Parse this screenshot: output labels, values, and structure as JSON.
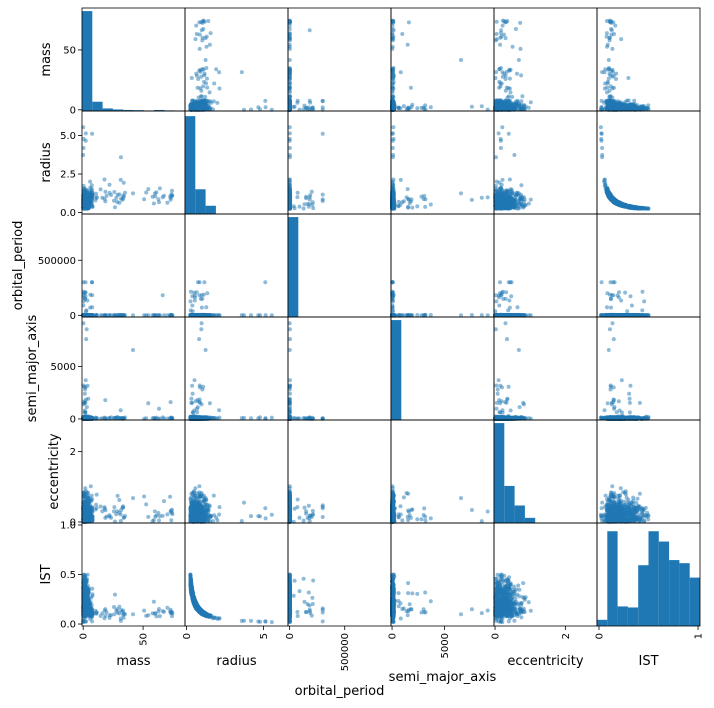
{
  "chart_data": {
    "type": "scatter",
    "variables": [
      "mass",
      "radius",
      "orbital_period",
      "semi_major_axis",
      "eccentricity",
      "IST"
    ],
    "axes": {
      "mass": {
        "range": [
          -1,
          85
        ],
        "ticks": [
          0,
          50
        ],
        "x_ticks": [
          0,
          50
        ],
        "x_tick_labels": [
          "0",
          "50"
        ]
      },
      "radius": {
        "range": [
          -0.1,
          6.6
        ],
        "ticks": [
          0.0,
          2.5,
          5.0
        ],
        "tick_labels": [
          "0.0",
          "2.5",
          "5.0"
        ],
        "x_ticks": [
          0,
          5
        ],
        "x_tick_labels": [
          "0",
          "5"
        ]
      },
      "orbital_period": {
        "range": [
          -15000,
          920000
        ],
        "ticks": [
          0,
          500000
        ],
        "tick_labels": [
          "0",
          "500000"
        ]
      },
      "semi_major_axis": {
        "range": [
          -100,
          9700
        ],
        "ticks": [
          0,
          5000
        ],
        "tick_labels": [
          "0",
          "5000"
        ]
      },
      "eccentricity": {
        "range": [
          -0.03,
          2.9
        ],
        "ticks": [
          0,
          2
        ],
        "tick_labels": [
          "0",
          "2"
        ]
      },
      "IST": {
        "range": [
          -0.02,
          1.02
        ],
        "ticks": [
          0.0,
          0.5,
          1.0
        ],
        "tick_labels": [
          "0.0",
          "0.5",
          "1.0"
        ],
        "x_ticks": [
          0,
          1
        ],
        "x_tick_labels": [
          "0",
          "1"
        ]
      }
    },
    "histograms": {
      "mass": [
        0.97,
        0.09,
        0.025,
        0.015,
        0.01,
        0.008,
        0.005,
        0.01,
        0.006,
        0.003
      ],
      "radius": [
        0.95,
        0.24,
        0.08,
        0.0,
        0.0,
        0.0,
        0.0,
        0.0,
        0.0,
        0.0
      ],
      "orbital_period": [
        0.97,
        0.0,
        0.0,
        0.0,
        0.0,
        0.0,
        0.0,
        0.0,
        0.0,
        0.0
      ],
      "semi_major_axis": [
        0.97,
        0.0,
        0.0,
        0.0,
        0.0,
        0.0,
        0.0,
        0.0,
        0.0,
        0.0
      ],
      "eccentricity": [
        0.97,
        0.36,
        0.17,
        0.05,
        0.0,
        0.0,
        0.0,
        0.0,
        0.0,
        0.0
      ],
      "IST": [
        0.06,
        0.92,
        0.19,
        0.18,
        0.59,
        0.92,
        0.82,
        0.64,
        0.61,
        0.47
      ]
    },
    "grid": false,
    "legend": "none"
  }
}
